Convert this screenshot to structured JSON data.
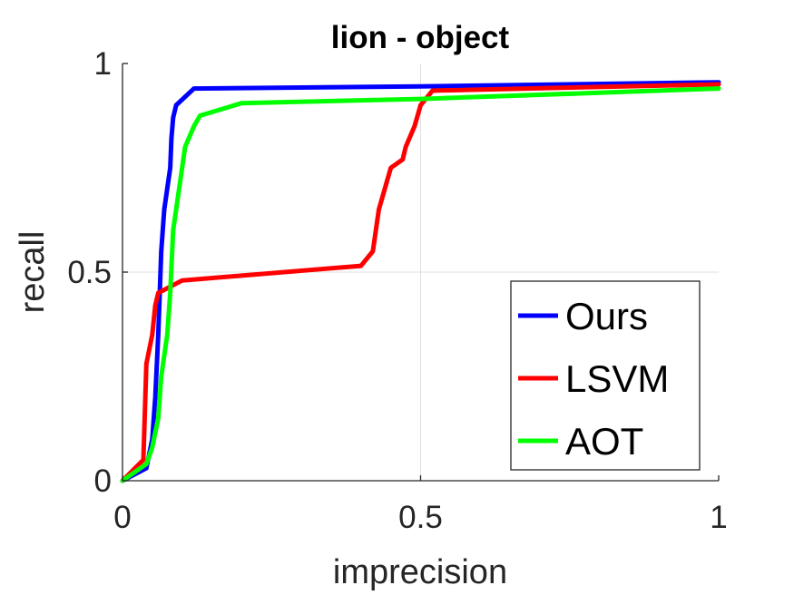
{
  "chart_data": {
    "type": "line",
    "title": "lion - object",
    "xlabel": "imprecision",
    "ylabel": "recall",
    "xlim": [
      0,
      1
    ],
    "ylim": [
      0,
      1
    ],
    "xticks": [
      0,
      0.5,
      1
    ],
    "xtick_labels": [
      "0",
      "0.5",
      "1"
    ],
    "yticks": [
      0,
      0.5,
      1
    ],
    "ytick_labels": [
      "0",
      "0.5",
      "1"
    ],
    "grid": true,
    "legend_position": "bottom-right",
    "series": [
      {
        "name": "Ours",
        "color": "#0000ff",
        "points": [
          [
            0,
            0
          ],
          [
            0.04,
            0.03
          ],
          [
            0.05,
            0.1
          ],
          [
            0.055,
            0.2
          ],
          [
            0.06,
            0.35
          ],
          [
            0.065,
            0.55
          ],
          [
            0.07,
            0.65
          ],
          [
            0.075,
            0.7
          ],
          [
            0.08,
            0.75
          ],
          [
            0.082,
            0.82
          ],
          [
            0.085,
            0.87
          ],
          [
            0.09,
            0.9
          ],
          [
            0.12,
            0.94
          ],
          [
            0.5,
            0.945
          ],
          [
            1,
            0.955
          ]
        ]
      },
      {
        "name": "LSVM",
        "color": "#ff0000",
        "points": [
          [
            0,
            0
          ],
          [
            0.035,
            0.05
          ],
          [
            0.04,
            0.28
          ],
          [
            0.05,
            0.35
          ],
          [
            0.055,
            0.42
          ],
          [
            0.06,
            0.45
          ],
          [
            0.1,
            0.48
          ],
          [
            0.4,
            0.515
          ],
          [
            0.42,
            0.55
          ],
          [
            0.43,
            0.65
          ],
          [
            0.45,
            0.75
          ],
          [
            0.47,
            0.77
          ],
          [
            0.475,
            0.8
          ],
          [
            0.49,
            0.85
          ],
          [
            0.5,
            0.9
          ],
          [
            0.52,
            0.935
          ],
          [
            1,
            0.95
          ]
        ]
      },
      {
        "name": "AOT",
        "color": "#00ff00",
        "points": [
          [
            0,
            0
          ],
          [
            0.04,
            0.04
          ],
          [
            0.05,
            0.08
          ],
          [
            0.06,
            0.15
          ],
          [
            0.065,
            0.25
          ],
          [
            0.075,
            0.35
          ],
          [
            0.08,
            0.45
          ],
          [
            0.085,
            0.6
          ],
          [
            0.09,
            0.65
          ],
          [
            0.1,
            0.75
          ],
          [
            0.105,
            0.8
          ],
          [
            0.12,
            0.85
          ],
          [
            0.13,
            0.875
          ],
          [
            0.2,
            0.905
          ],
          [
            0.5,
            0.915
          ],
          [
            1,
            0.94
          ]
        ]
      }
    ]
  }
}
